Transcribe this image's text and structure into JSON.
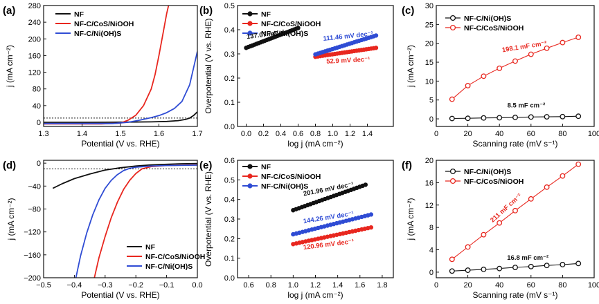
{
  "colors": {
    "black": "#111111",
    "red": "#e8271f",
    "blue": "#2f4cd4"
  },
  "chart_data": [
    {
      "id": "a",
      "letter": "(a)",
      "type": "line",
      "xlabel": "Potential (V vs. RHE)",
      "ylabel": "j (mA cm⁻²)",
      "xlim": [
        1.3,
        1.7
      ],
      "ylim": [
        -10,
        280
      ],
      "xticks": [
        1.3,
        1.4,
        1.5,
        1.6,
        1.7
      ],
      "yticks": [
        0,
        40,
        80,
        120,
        160,
        200,
        240,
        280
      ],
      "xtick_labels": [
        "1.3",
        "1.4",
        "1.5",
        "1.6",
        "1.7"
      ],
      "ytick_labels": [
        "0",
        "40",
        "80",
        "120",
        "160",
        "200",
        "240",
        "280"
      ],
      "grid": false,
      "legend_position": "top-left",
      "reference_line": {
        "y": 10,
        "style": "dotted"
      },
      "series": [
        {
          "name": "NF",
          "color": "black",
          "x": [
            1.3,
            1.4,
            1.5,
            1.58,
            1.62,
            1.65,
            1.67,
            1.68,
            1.69,
            1.7
          ],
          "y": [
            0,
            0,
            0.3,
            1,
            2,
            4,
            7,
            10,
            16,
            25
          ]
        },
        {
          "name": "NF-C/CoS/NiOOH",
          "color": "red",
          "x": [
            1.3,
            1.45,
            1.5,
            1.52,
            1.54,
            1.56,
            1.58,
            1.59,
            1.6,
            1.61,
            1.62,
            1.625
          ],
          "y": [
            -4,
            -4,
            -2,
            5,
            17,
            40,
            80,
            115,
            160,
            210,
            260,
            280
          ]
        },
        {
          "name": "NF-C/Ni(OH)S",
          "color": "blue",
          "x": [
            1.3,
            1.48,
            1.52,
            1.55,
            1.58,
            1.6,
            1.62,
            1.64,
            1.66,
            1.68,
            1.7
          ],
          "y": [
            -3,
            -3,
            0,
            5,
            11,
            16,
            23,
            33,
            50,
            90,
            170
          ]
        }
      ]
    },
    {
      "id": "b",
      "letter": "(b)",
      "type": "scatter",
      "xlabel": "log j (mA cm⁻²)",
      "ylabel": "Overpotential (V vs. RHE)",
      "xlim": [
        -0.1,
        1.7
      ],
      "ylim": [
        0,
        0.5
      ],
      "xticks": [
        0,
        0.2,
        0.4,
        0.6,
        0.8,
        1.0,
        1.2,
        1.4
      ],
      "yticks": [
        0,
        0.1,
        0.2,
        0.3,
        0.4,
        0.5
      ],
      "xtick_labels": [
        "0.0",
        "0.2",
        "0.4",
        "0.6",
        "0.8",
        "1.0",
        "1.2",
        "1.4"
      ],
      "ytick_labels": [
        "0.0",
        "0.1",
        "0.2",
        "0.3",
        "0.4",
        "0.5"
      ],
      "grid": false,
      "legend_position": "top-left",
      "series": [
        {
          "name": "NF",
          "color": "black",
          "x": [
            0.0,
            0.6
          ],
          "y": [
            0.325,
            0.407
          ]
        },
        {
          "name": "NF-C/CoS/NiOOH",
          "color": "red",
          "x": [
            0.8,
            1.5
          ],
          "y": [
            0.288,
            0.325
          ]
        },
        {
          "name": "NF-C/Ni(OH)S",
          "color": "blue",
          "x": [
            0.8,
            1.5
          ],
          "y": [
            0.298,
            0.376
          ]
        }
      ],
      "annotations": [
        {
          "text": "137.07 mV dec⁻¹",
          "color": "black",
          "x": 0.3,
          "y": 0.375,
          "angle": -7
        },
        {
          "text": "111.46 mV dec⁻¹",
          "color": "blue",
          "x": 1.18,
          "y": 0.365,
          "angle": -6
        },
        {
          "text": "52.9 mV dec⁻¹",
          "color": "red",
          "x": 1.18,
          "y": 0.265,
          "angle": -3
        }
      ]
    },
    {
      "id": "c",
      "letter": "(c)",
      "type": "scatter",
      "xlabel": "Scanning rate (mV s⁻¹)",
      "ylabel": "j (mA cm⁻²)",
      "xlim": [
        0,
        100
      ],
      "ylim": [
        -2,
        30
      ],
      "xticks": [
        0,
        20,
        40,
        60,
        80,
        100
      ],
      "yticks": [
        0,
        5,
        10,
        15,
        20,
        25,
        30
      ],
      "xtick_labels": [
        "0",
        "20",
        "40",
        "60",
        "80",
        "100"
      ],
      "ytick_labels": [
        "0",
        "5",
        "10",
        "15",
        "20",
        "25",
        "30"
      ],
      "grid": false,
      "legend_position": "top-left",
      "series": [
        {
          "name": "NF-C/Ni(OH)S",
          "color": "black",
          "x": [
            10,
            20,
            30,
            40,
            50,
            60,
            70,
            80,
            90
          ],
          "y": [
            0.1,
            0.15,
            0.25,
            0.3,
            0.4,
            0.5,
            0.55,
            0.6,
            0.7
          ]
        },
        {
          "name": "NF-C/CoS/NiOOH",
          "color": "red",
          "x": [
            10,
            20,
            30,
            40,
            50,
            60,
            70,
            80,
            90
          ],
          "y": [
            5.2,
            8.8,
            11.3,
            13.4,
            15.3,
            17.1,
            18.7,
            20.2,
            21.6
          ]
        }
      ],
      "annotations": [
        {
          "text": "198.1 mF cm⁻²",
          "color": "red",
          "x": 56,
          "y": 18.6,
          "angle": -9
        },
        {
          "text": "8.5 mF cm⁻²",
          "color": "black",
          "x": 57,
          "y": 3.0,
          "angle": 0
        }
      ]
    },
    {
      "id": "d",
      "letter": "(d)",
      "type": "line",
      "xlabel": "Potential (V vs. RHE)",
      "ylabel": "j (mA cm⁻²)",
      "xlim": [
        -0.5,
        0.0
      ],
      "ylim": [
        -200,
        5
      ],
      "xticks": [
        -0.5,
        -0.4,
        -0.3,
        -0.2,
        -0.1,
        0.0
      ],
      "yticks": [
        0,
        -40,
        -80,
        -120,
        -160,
        -200
      ],
      "xtick_labels": [
        "−0.5",
        "−0.4",
        "−0.3",
        "−0.2",
        "−0.1",
        "0.0"
      ],
      "ytick_labels": [
        "0",
        "−40",
        "−80",
        "−120",
        "−160",
        "−200"
      ],
      "grid": false,
      "legend_position": "bottom-right",
      "reference_line": {
        "y": -10,
        "style": "dotted"
      },
      "series": [
        {
          "name": "NF",
          "color": "black",
          "x": [
            -0.47,
            -0.44,
            -0.4,
            -0.35,
            -0.3,
            -0.25,
            -0.2,
            -0.15,
            -0.1,
            -0.05,
            0.0
          ],
          "y": [
            -44,
            -36,
            -27,
            -19,
            -12,
            -8,
            -5,
            -3,
            -2,
            -1,
            -0.5
          ]
        },
        {
          "name": "NF-C/CoS/NiOOH",
          "color": "red",
          "x": [
            -0.335,
            -0.32,
            -0.3,
            -0.28,
            -0.26,
            -0.24,
            -0.22,
            -0.2,
            -0.18,
            -0.15,
            -0.1,
            0.0
          ],
          "y": [
            -200,
            -165,
            -128,
            -95,
            -68,
            -46,
            -30,
            -18,
            -10,
            -6,
            -4,
            -3
          ]
        },
        {
          "name": "NF-C/Ni(OH)S",
          "color": "blue",
          "x": [
            -0.395,
            -0.38,
            -0.36,
            -0.34,
            -0.32,
            -0.3,
            -0.28,
            -0.26,
            -0.24,
            -0.22,
            -0.2,
            -0.15,
            -0.1,
            0.0
          ],
          "y": [
            -200,
            -162,
            -122,
            -90,
            -64,
            -44,
            -30,
            -20,
            -13,
            -9,
            -7,
            -5,
            -4,
            -3.5
          ]
        }
      ]
    },
    {
      "id": "e",
      "letter": "(e)",
      "type": "scatter",
      "xlabel": "log j (mA cm⁻²)",
      "ylabel": "Overpotential (V vs. RHE)",
      "xlim": [
        0.5,
        1.9
      ],
      "ylim": [
        0,
        0.6
      ],
      "xticks": [
        0.6,
        0.8,
        1.0,
        1.2,
        1.4,
        1.6,
        1.8
      ],
      "yticks": [
        0,
        0.1,
        0.2,
        0.3,
        0.4,
        0.5,
        0.6
      ],
      "xtick_labels": [
        "0.6",
        "0.8",
        "1.0",
        "1.2",
        "1.4",
        "1.6",
        "1.8"
      ],
      "ytick_labels": [
        "0.0",
        "0.1",
        "0.2",
        "0.3",
        "0.4",
        "0.5",
        "0.6"
      ],
      "grid": false,
      "legend_position": "top-left",
      "series": [
        {
          "name": "NF",
          "color": "black",
          "x": [
            1.0,
            1.65
          ],
          "y": [
            0.345,
            0.475
          ]
        },
        {
          "name": "NF-C/CoS/NiOOH",
          "color": "red",
          "x": [
            1.0,
            1.7
          ],
          "y": [
            0.172,
            0.257
          ]
        },
        {
          "name": "NF-C/Ni(OH)S",
          "color": "blue",
          "x": [
            1.0,
            1.7
          ],
          "y": [
            0.222,
            0.323
          ]
        }
      ],
      "annotations": [
        {
          "text": "201.96 mV dec⁻¹",
          "color": "black",
          "x": 1.32,
          "y": 0.443,
          "angle": -11
        },
        {
          "text": "144.26 mV dec⁻¹",
          "color": "blue",
          "x": 1.32,
          "y": 0.298,
          "angle": -9
        },
        {
          "text": "120.96 mV dec⁻¹",
          "color": "red",
          "x": 1.32,
          "y": 0.16,
          "angle": -7
        }
      ]
    },
    {
      "id": "f",
      "letter": "(f)",
      "type": "scatter",
      "xlabel": "Scanning rate (mV s⁻¹)",
      "ylabel": "j (mA cm⁻²)",
      "xlim": [
        0,
        100
      ],
      "ylim": [
        -1,
        20
      ],
      "xticks": [
        0,
        20,
        40,
        60,
        80,
        100
      ],
      "yticks": [
        0,
        4,
        8,
        12,
        16,
        20
      ],
      "xtick_labels": [
        "0",
        "20",
        "40",
        "60",
        "80",
        "100"
      ],
      "ytick_labels": [
        "0",
        "4",
        "8",
        "12",
        "16",
        "20"
      ],
      "grid": false,
      "legend_position": "top-left",
      "series": [
        {
          "name": "NF-C/Ni(OH)S",
          "color": "black",
          "x": [
            10,
            20,
            30,
            40,
            50,
            60,
            70,
            80,
            90
          ],
          "y": [
            0.2,
            0.35,
            0.5,
            0.65,
            0.85,
            1.0,
            1.2,
            1.35,
            1.55
          ]
        },
        {
          "name": "NF-C/CoS/NiOOH",
          "color": "red",
          "x": [
            10,
            20,
            30,
            40,
            50,
            60,
            70,
            80,
            90
          ],
          "y": [
            2.3,
            4.5,
            6.7,
            8.8,
            11.0,
            13.1,
            15.2,
            17.2,
            19.3
          ]
        }
      ],
      "annotations": [
        {
          "text": "211 mF cm⁻²",
          "color": "red",
          "x": 45,
          "y": 11.2,
          "angle": -42
        },
        {
          "text": "16.8 mF cm⁻²",
          "color": "black",
          "x": 58,
          "y": 2.2,
          "angle": 0
        }
      ]
    }
  ]
}
